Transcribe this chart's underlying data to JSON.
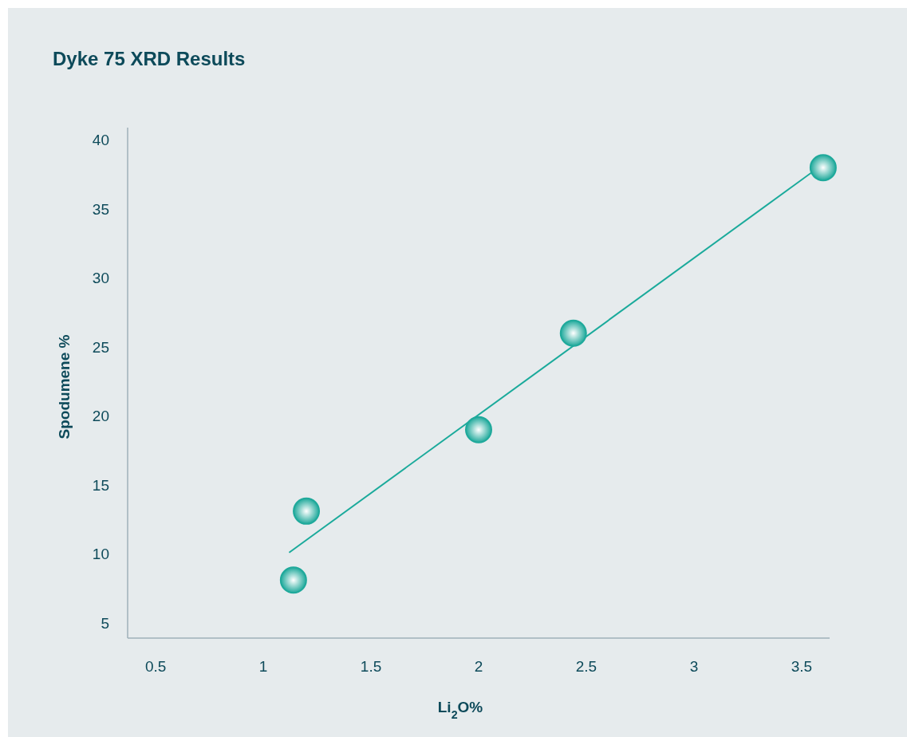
{
  "chart_data": {
    "type": "scatter",
    "title": "Dyke 75 XRD Results",
    "xlabel": "Li$_{2}$O%",
    "ylabel": "Spodumene %",
    "xlim": [
      0.37,
      3.63
    ],
    "xticks": [
      0.5,
      1,
      1.5,
      2,
      2.5,
      3,
      3.5
    ],
    "ylim": [
      3.9,
      40.9
    ],
    "yticks": [
      5,
      10,
      15,
      20,
      25,
      30,
      35,
      40
    ],
    "grid": false,
    "marker": "circle",
    "series": [
      {
        "type": "line",
        "color": "#1aaa9b",
        "x": [
          1.12,
          3.56
        ],
        "values": [
          10.1,
          37.8
        ],
        "marker": "none",
        "line_style": "solid"
      },
      {
        "color": "#1fa99b",
        "x": [
          1.14,
          1.2,
          2.0,
          2.44,
          3.6
        ],
        "values": [
          8.1,
          13.1,
          19,
          26,
          38
        ]
      }
    ]
  }
}
